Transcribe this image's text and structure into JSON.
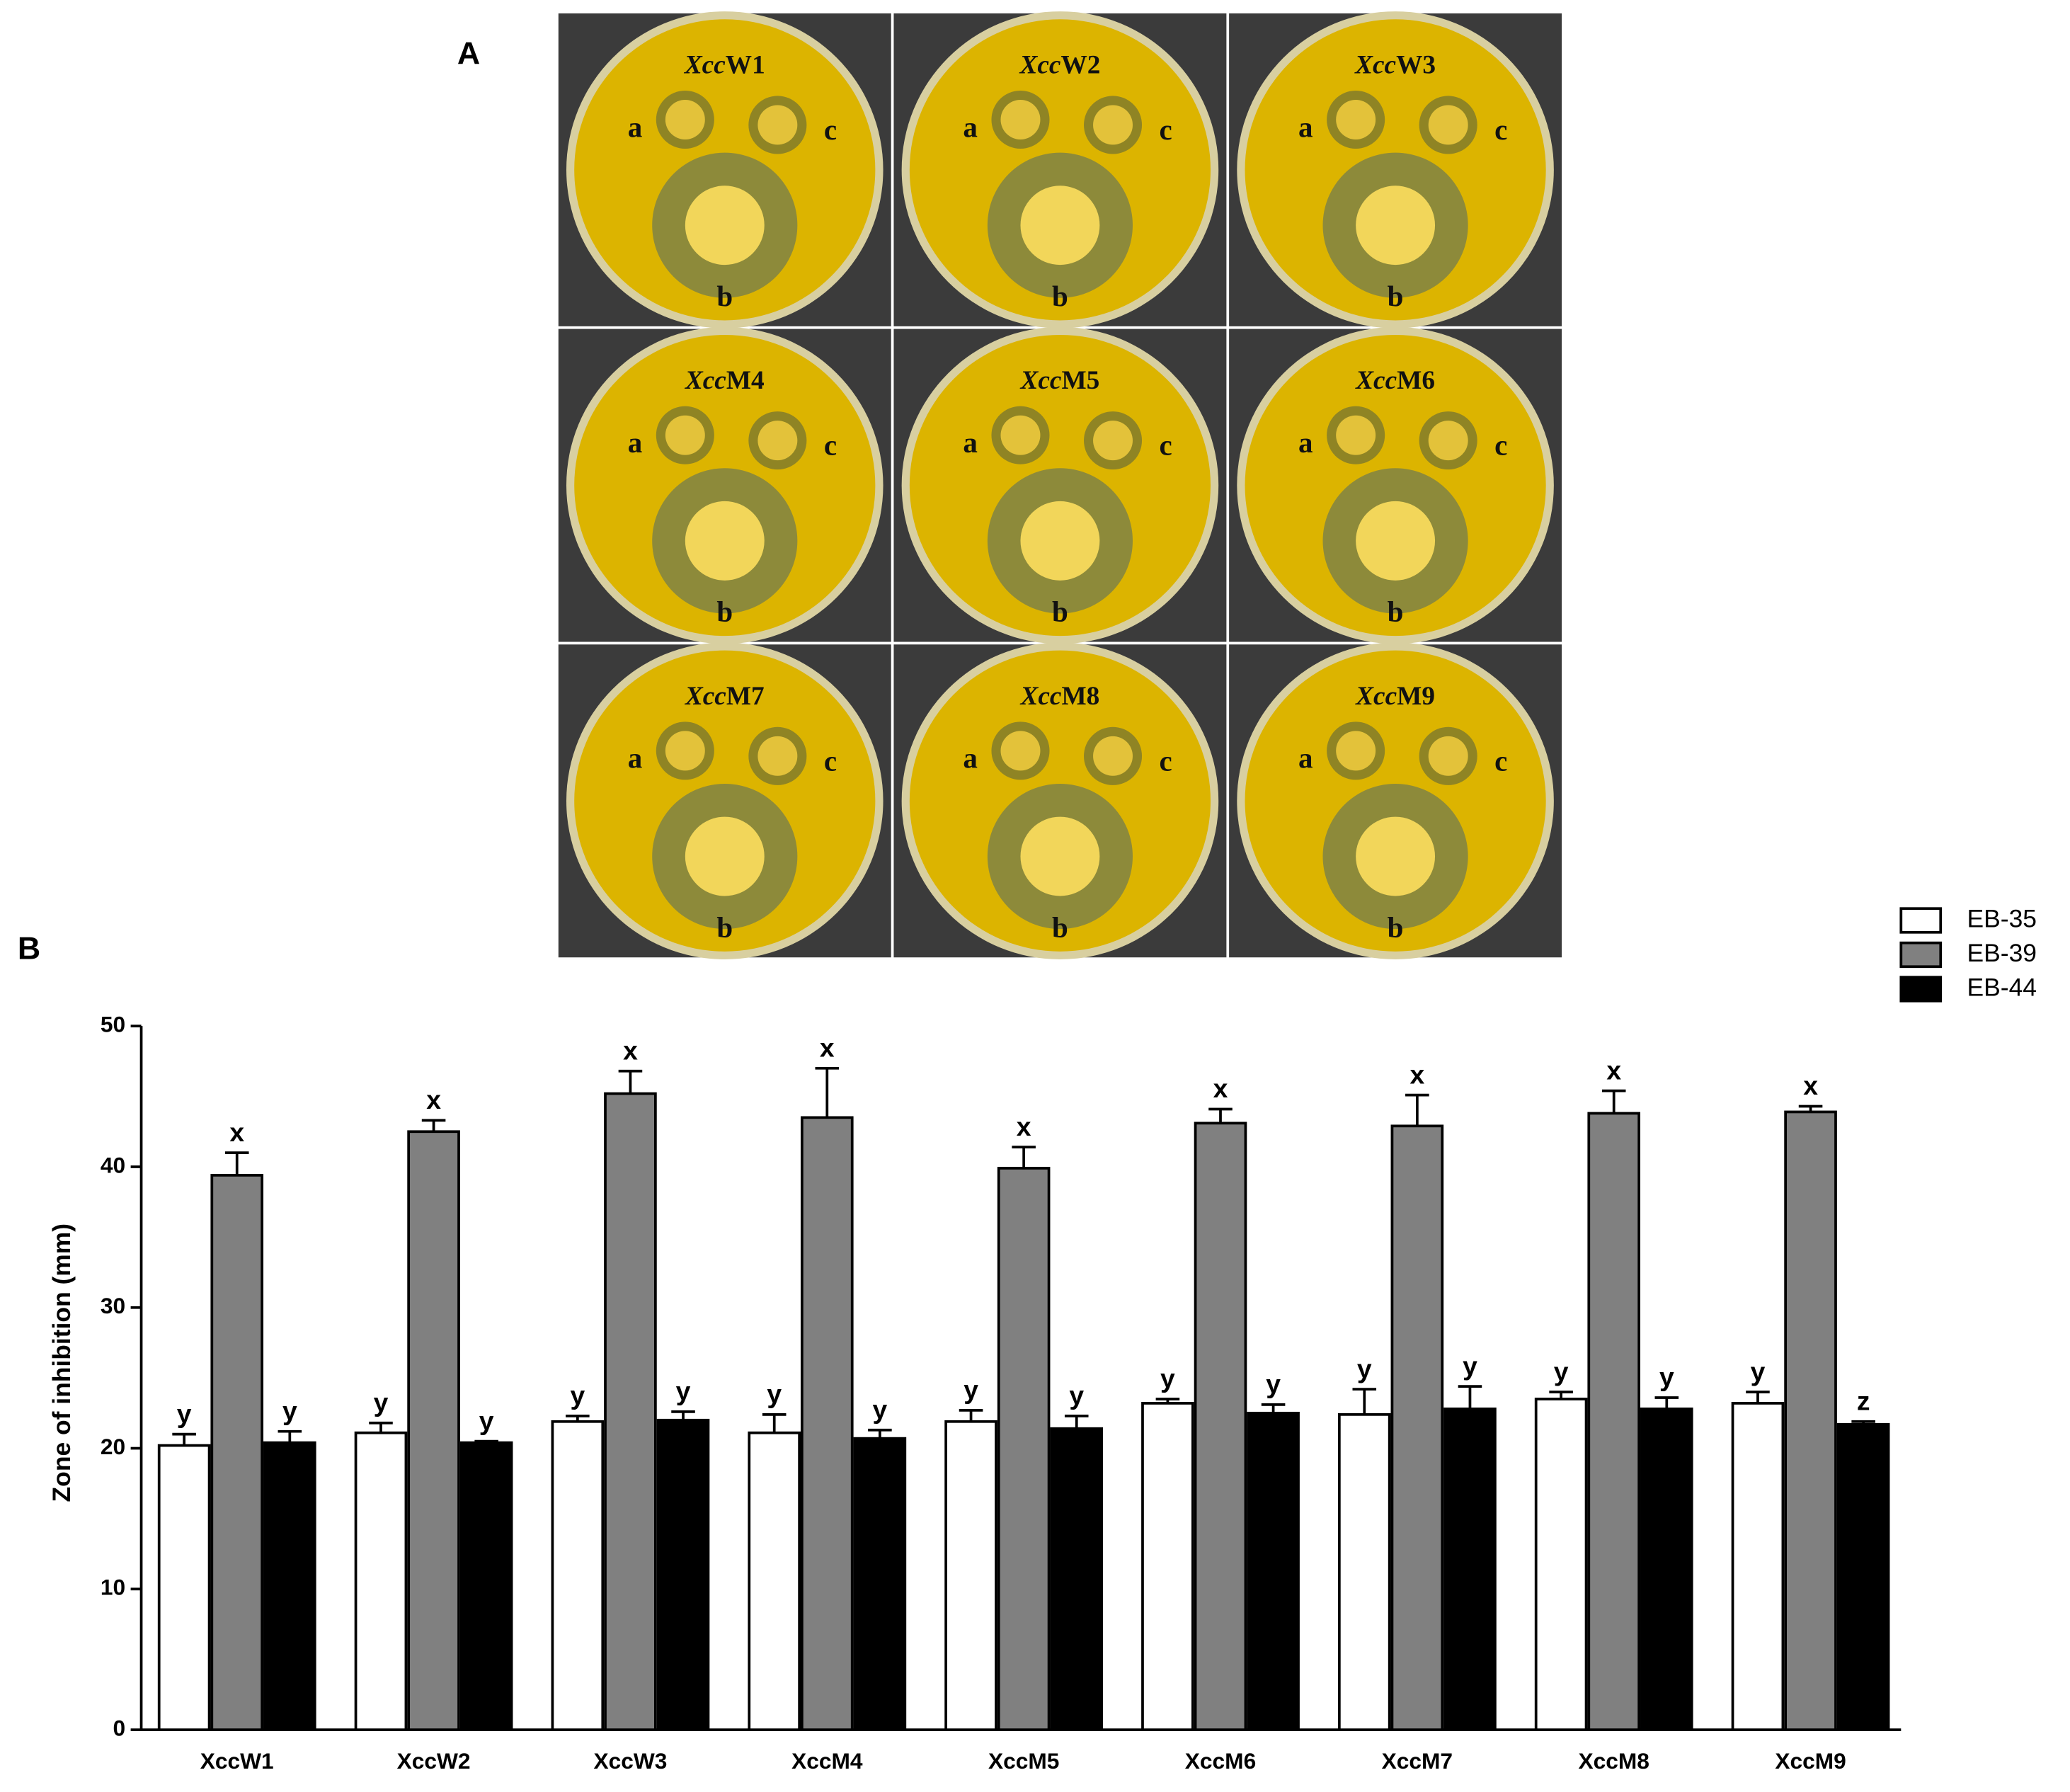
{
  "panel_a": {
    "label": "A",
    "plates": [
      {
        "genus": "Xcc",
        "strain": "W1"
      },
      {
        "genus": "Xcc",
        "strain": "W2"
      },
      {
        "genus": "Xcc",
        "strain": "W3"
      },
      {
        "genus": "Xcc",
        "strain": "M4"
      },
      {
        "genus": "Xcc",
        "strain": "M5"
      },
      {
        "genus": "Xcc",
        "strain": "M6"
      },
      {
        "genus": "Xcc",
        "strain": "M7"
      },
      {
        "genus": "Xcc",
        "strain": "M8"
      },
      {
        "genus": "Xcc",
        "strain": "M9"
      }
    ],
    "spot_labels": [
      "a",
      "b",
      "c"
    ]
  },
  "chart_data": {
    "type": "bar",
    "panel_label": "B",
    "y_label": "Zone of inhibition (mm)",
    "categories": [
      "XccW1",
      "XccW2",
      "XccW3",
      "XccM4",
      "XccM5",
      "XccM6",
      "XccM7",
      "XccM8",
      "XccM9"
    ],
    "series": [
      {
        "name": "EB-35",
        "color": "#ffffff",
        "values": [
          20.2,
          21.1,
          21.9,
          21.1,
          21.9,
          23.2,
          22.4,
          23.5,
          23.2
        ],
        "errors": [
          0.8,
          0.7,
          0.4,
          1.3,
          0.8,
          0.3,
          1.8,
          0.5,
          0.8
        ],
        "letters": [
          "y",
          "y",
          "y",
          "y",
          "y",
          "y",
          "y",
          "y",
          "y"
        ]
      },
      {
        "name": "EB-39",
        "color": "#808080",
        "values": [
          39.4,
          42.5,
          45.2,
          43.5,
          39.9,
          43.1,
          42.9,
          43.8,
          43.9
        ],
        "errors": [
          1.6,
          0.8,
          1.6,
          3.5,
          1.5,
          1.0,
          2.2,
          1.6,
          0.4
        ],
        "letters": [
          "x",
          "x",
          "x",
          "x",
          "x",
          "x",
          "x",
          "x",
          "x"
        ]
      },
      {
        "name": "EB-44",
        "color": "#000000",
        "values": [
          20.4,
          20.4,
          22.0,
          20.7,
          21.4,
          22.5,
          22.8,
          22.8,
          21.7
        ],
        "errors": [
          0.8,
          0.1,
          0.6,
          0.6,
          0.9,
          0.6,
          1.6,
          0.8,
          0.2
        ],
        "letters": [
          "y",
          "y",
          "y",
          "y",
          "y",
          "y",
          "y",
          "y",
          "z"
        ]
      }
    ],
    "ylim": [
      0,
      50
    ],
    "yticks": [
      0,
      10,
      20,
      30,
      40,
      50
    ],
    "grid": false,
    "legend": "top-right"
  }
}
